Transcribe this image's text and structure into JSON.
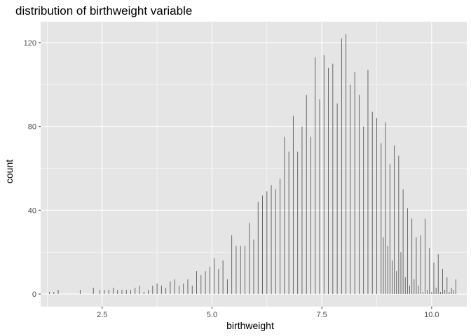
{
  "chart_data": {
    "type": "bar",
    "title": "distribution of birthweight variable",
    "xlabel": "birthweight",
    "ylabel": "count",
    "xlim": [
      1.1,
      10.8
    ],
    "ylim": [
      -6,
      130
    ],
    "xticks": [
      2.5,
      5.0,
      7.5,
      10.0
    ],
    "xtick_labels": [
      "2.5",
      "5.0",
      "7.5",
      "10.0"
    ],
    "yticks": [
      0,
      40,
      80,
      120
    ],
    "ytick_labels": [
      "0",
      "40",
      "80",
      "120"
    ],
    "grid": true,
    "background_color": "#e5e5e5",
    "grid_color": "#ffffff",
    "bar_color": "#595959",
    "bars": [
      {
        "x": 1.3,
        "y": 1
      },
      {
        "x": 1.4,
        "y": 1
      },
      {
        "x": 1.5,
        "y": 2
      },
      {
        "x": 2.0,
        "y": 2
      },
      {
        "x": 2.3,
        "y": 3
      },
      {
        "x": 2.45,
        "y": 2
      },
      {
        "x": 2.55,
        "y": 2
      },
      {
        "x": 2.65,
        "y": 2
      },
      {
        "x": 2.75,
        "y": 3
      },
      {
        "x": 2.85,
        "y": 2
      },
      {
        "x": 2.95,
        "y": 2
      },
      {
        "x": 3.05,
        "y": 2
      },
      {
        "x": 3.15,
        "y": 2
      },
      {
        "x": 3.25,
        "y": 3
      },
      {
        "x": 3.35,
        "y": 4
      },
      {
        "x": 3.45,
        "y": 1
      },
      {
        "x": 3.55,
        "y": 2
      },
      {
        "x": 3.65,
        "y": 4
      },
      {
        "x": 3.75,
        "y": 5
      },
      {
        "x": 3.85,
        "y": 4
      },
      {
        "x": 3.95,
        "y": 3
      },
      {
        "x": 4.05,
        "y": 6
      },
      {
        "x": 4.15,
        "y": 7
      },
      {
        "x": 4.25,
        "y": 4
      },
      {
        "x": 4.35,
        "y": 5
      },
      {
        "x": 4.45,
        "y": 7
      },
      {
        "x": 4.55,
        "y": 4
      },
      {
        "x": 4.65,
        "y": 11
      },
      {
        "x": 4.75,
        "y": 9
      },
      {
        "x": 4.85,
        "y": 11
      },
      {
        "x": 4.95,
        "y": 13
      },
      {
        "x": 5.05,
        "y": 17
      },
      {
        "x": 5.15,
        "y": 12
      },
      {
        "x": 5.25,
        "y": 16
      },
      {
        "x": 5.35,
        "y": 7
      },
      {
        "x": 5.45,
        "y": 28
      },
      {
        "x": 5.55,
        "y": 23
      },
      {
        "x": 5.65,
        "y": 23
      },
      {
        "x": 5.75,
        "y": 23
      },
      {
        "x": 5.85,
        "y": 34
      },
      {
        "x": 5.95,
        "y": 26
      },
      {
        "x": 6.05,
        "y": 44
      },
      {
        "x": 6.15,
        "y": 47
      },
      {
        "x": 6.25,
        "y": 49
      },
      {
        "x": 6.35,
        "y": 52
      },
      {
        "x": 6.45,
        "y": 50
      },
      {
        "x": 6.55,
        "y": 55
      },
      {
        "x": 6.65,
        "y": 75
      },
      {
        "x": 6.75,
        "y": 68
      },
      {
        "x": 6.85,
        "y": 85
      },
      {
        "x": 6.95,
        "y": 68
      },
      {
        "x": 7.05,
        "y": 80
      },
      {
        "x": 7.15,
        "y": 95
      },
      {
        "x": 7.25,
        "y": 75
      },
      {
        "x": 7.35,
        "y": 113
      },
      {
        "x": 7.45,
        "y": 93
      },
      {
        "x": 7.55,
        "y": 114
      },
      {
        "x": 7.65,
        "y": 108
      },
      {
        "x": 7.75,
        "y": 110
      },
      {
        "x": 7.85,
        "y": 91
      },
      {
        "x": 7.95,
        "y": 122
      },
      {
        "x": 8.05,
        "y": 124
      },
      {
        "x": 8.15,
        "y": 100
      },
      {
        "x": 8.25,
        "y": 106
      },
      {
        "x": 8.35,
        "y": 95
      },
      {
        "x": 8.45,
        "y": 80
      },
      {
        "x": 8.55,
        "y": 107
      },
      {
        "x": 8.65,
        "y": 87
      },
      {
        "x": 8.75,
        "y": 84
      },
      {
        "x": 8.85,
        "y": 72
      },
      {
        "x": 8.95,
        "y": 82
      },
      {
        "x": 9.05,
        "y": 62
      },
      {
        "x": 9.15,
        "y": 71
      },
      {
        "x": 9.25,
        "y": 66
      },
      {
        "x": 9.35,
        "y": 50
      },
      {
        "x": 9.45,
        "y": 41
      },
      {
        "x": 9.55,
        "y": 36
      },
      {
        "x": 9.65,
        "y": 27
      },
      {
        "x": 9.75,
        "y": 28
      },
      {
        "x": 9.85,
        "y": 36
      },
      {
        "x": 9.95,
        "y": 22
      },
      {
        "x": 10.05,
        "y": 15
      },
      {
        "x": 10.15,
        "y": 19
      },
      {
        "x": 10.25,
        "y": 12
      },
      {
        "x": 10.35,
        "y": 8
      },
      {
        "x": 10.45,
        "y": 3
      },
      {
        "x": 10.55,
        "y": 7
      },
      {
        "x": 8.9,
        "y": 27
      },
      {
        "x": 9.0,
        "y": 23
      },
      {
        "x": 9.1,
        "y": 16
      },
      {
        "x": 9.2,
        "y": 11
      },
      {
        "x": 9.3,
        "y": 20
      },
      {
        "x": 9.4,
        "y": 8
      },
      {
        "x": 9.5,
        "y": 4
      },
      {
        "x": 9.6,
        "y": 7
      },
      {
        "x": 9.7,
        "y": 4
      },
      {
        "x": 9.8,
        "y": 1
      },
      {
        "x": 9.9,
        "y": 2
      },
      {
        "x": 10.0,
        "y": 1
      },
      {
        "x": 10.1,
        "y": 3
      },
      {
        "x": 10.2,
        "y": 1
      },
      {
        "x": 10.3,
        "y": 2
      },
      {
        "x": 10.4,
        "y": 1
      },
      {
        "x": 10.5,
        "y": 2
      }
    ]
  }
}
